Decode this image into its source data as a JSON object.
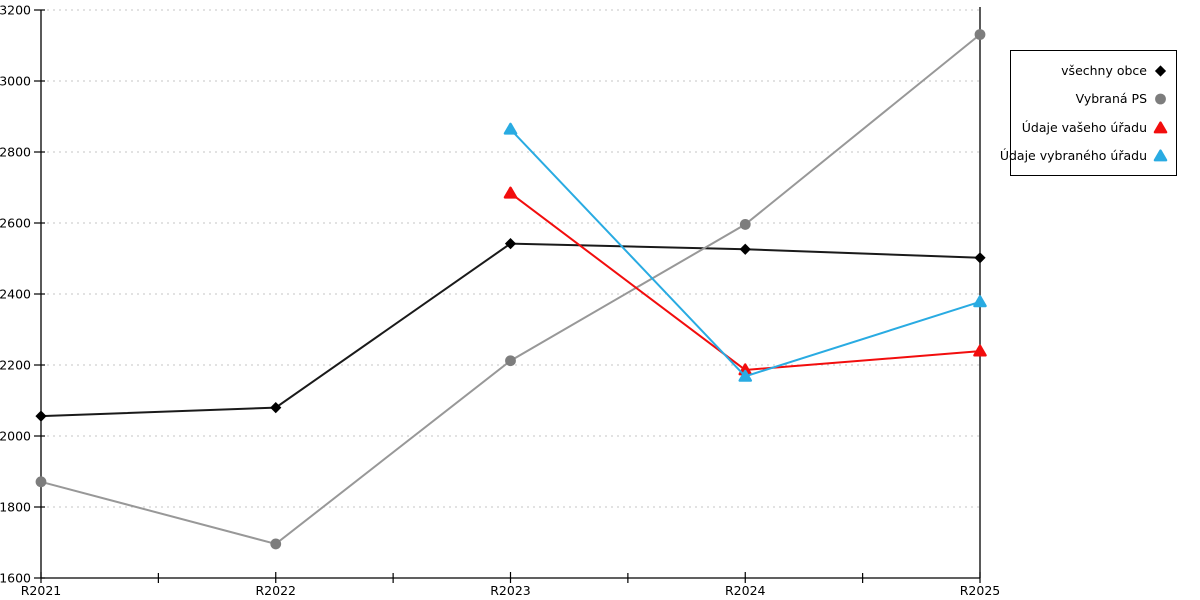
{
  "chart_data": {
    "type": "line",
    "title": "",
    "xlabel": "",
    "ylabel": "",
    "categories": [
      "R2021",
      "R2022",
      "R2023",
      "R2024",
      "R2025"
    ],
    "ylim": [
      1600,
      3200
    ],
    "y_tick_step": 200,
    "y_tick_labels": [
      "1600",
      "1800",
      "2000",
      "2200",
      "2400",
      "2600",
      "2800",
      "3000",
      "3200"
    ],
    "grid": "horizontal-dotted",
    "gridline_color": "#c6c6c6",
    "axis_color": "#000000",
    "legend_position": "right-outside-boxed",
    "series": [
      {
        "name": "všechny obce",
        "marker": "diamond",
        "color": "#1a1a1a",
        "marker_color": "#000000",
        "values": [
          2056,
          2080,
          2542,
          2526,
          2502
        ]
      },
      {
        "name": "Vybraná PS",
        "marker": "circle",
        "color": "#989898",
        "marker_color": "#7d7d7d",
        "values": [
          1871,
          1696,
          2212,
          2596,
          3131
        ]
      },
      {
        "name": "Údaje vašeho úřadu",
        "marker": "triangle",
        "color": "#f20d0d",
        "marker_color": "#f20d0d",
        "values": [
          null,
          null,
          2684,
          2186,
          2239
        ]
      },
      {
        "name": "Údaje vybraného úřadu",
        "marker": "triangle",
        "color": "#29abe2",
        "marker_color": "#29abe2",
        "values": [
          null,
          null,
          2864,
          2168,
          2378
        ]
      }
    ]
  }
}
